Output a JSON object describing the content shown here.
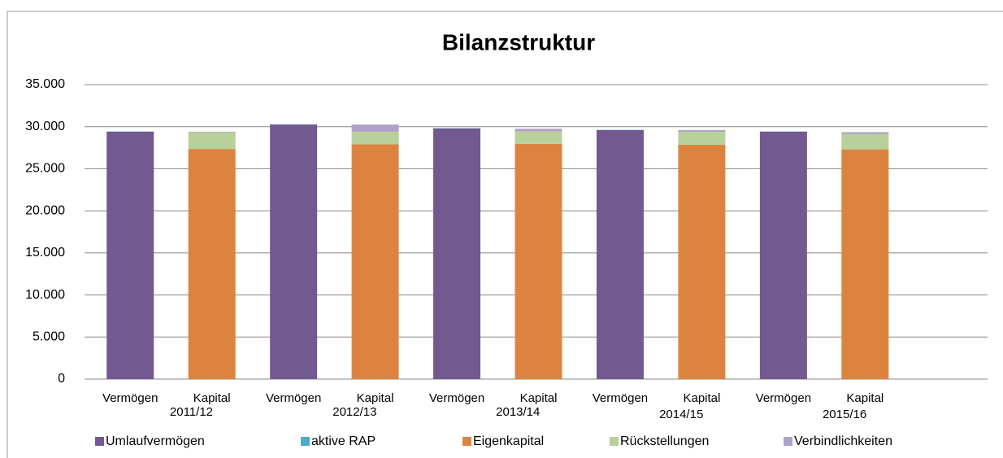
{
  "chart_data": {
    "type": "stacked_bar",
    "title": "Bilanzstruktur",
    "categories": [
      "Vermögen",
      "Kapital",
      "Vermögen",
      "Kapital",
      "Vermögen",
      "Kapital",
      "Vermögen",
      "Kapital",
      "Vermögen",
      "Kapital"
    ],
    "groups": [
      "2011/12",
      "2012/13",
      "2013/14",
      "2014/15",
      "2015/16"
    ],
    "series": [
      {
        "name": "Umlaufvermögen",
        "color": "#725990",
        "values": [
          29400,
          null,
          30250,
          null,
          29800,
          null,
          29600,
          null,
          29400,
          null
        ]
      },
      {
        "name": "aktive RAP",
        "color": "#4bacc6",
        "values": [
          30,
          null,
          40,
          null,
          30,
          null,
          30,
          null,
          30,
          null
        ]
      },
      {
        "name": "Eigenkapital",
        "color": "#dd8340",
        "values": [
          null,
          27350,
          null,
          27900,
          null,
          27950,
          null,
          27850,
          null,
          27300
        ]
      },
      {
        "name": "Rückstellungen",
        "color": "#b8d09a",
        "values": [
          null,
          2000,
          null,
          1500,
          null,
          1500,
          null,
          1550,
          null,
          1850
        ]
      },
      {
        "name": "Verbindlichkeiten",
        "color": "#b1a0c7",
        "values": [
          null,
          50,
          null,
          850,
          null,
          300,
          null,
          200,
          null,
          200
        ]
      }
    ],
    "ylim": [
      0,
      35000
    ],
    "yticks": [
      0,
      {
        "value": 5000,
        "label": "5.000"
      },
      {
        "value": 10000,
        "label": "10.000"
      },
      {
        "value": 15000,
        "label": "15.000"
      },
      {
        "value": 20000,
        "label": "20.000"
      },
      {
        "value": 25000,
        "label": "25.000"
      },
      {
        "value": 30000,
        "label": "30.000"
      },
      {
        "value": 35000,
        "label": "35.000"
      }
    ],
    "grid": true,
    "legend": "bottom"
  }
}
